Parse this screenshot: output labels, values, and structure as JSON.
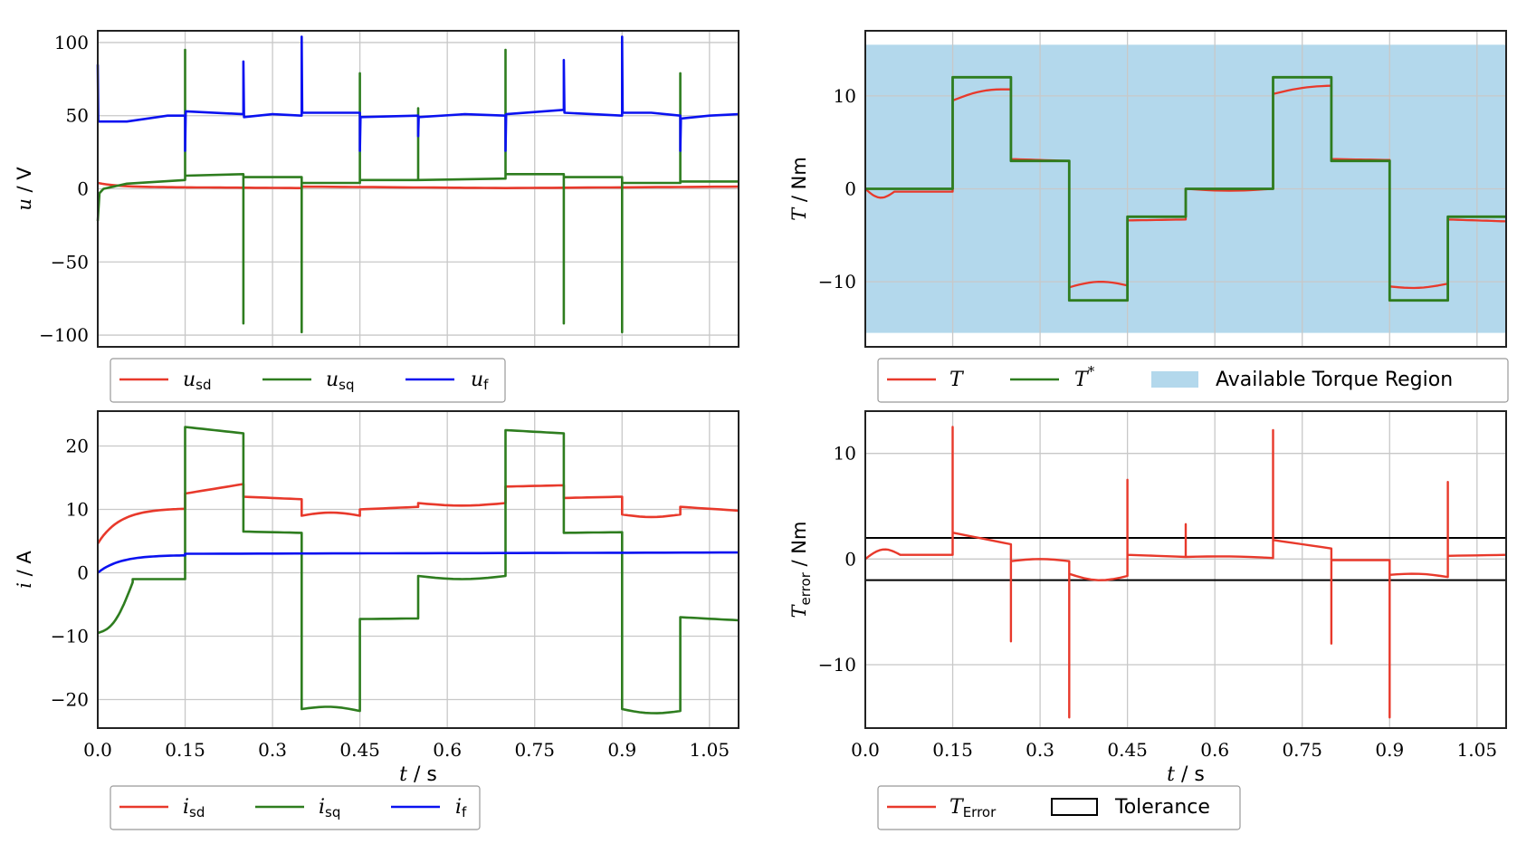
{
  "colors": {
    "red": "#e8392b",
    "green": "#2e7d1f",
    "blue": "#0a12f0",
    "region": "#b3d8ec",
    "tolerance": "#000000",
    "grid": "#c8c8c8"
  },
  "charts": {
    "voltage": {
      "type": "line",
      "ylabel_main": "u",
      "ylabel_unit": " / V",
      "xlim": [
        0,
        1.1
      ],
      "ylim": [
        -108,
        108
      ],
      "yticks": [
        {
          "v": 100,
          "label": "100"
        },
        {
          "v": 50,
          "label": "50"
        },
        {
          "v": 0,
          "label": "0"
        },
        {
          "v": -50,
          "label": "−50"
        },
        {
          "v": -100,
          "label": "−100"
        }
      ],
      "legend": [
        {
          "main": "u",
          "sub": "sd"
        },
        {
          "main": "u",
          "sub": "sq"
        },
        {
          "main": "u",
          "sub": "f"
        }
      ]
    },
    "current": {
      "type": "line",
      "ylabel_main": "i",
      "ylabel_unit": " / A",
      "xlim": [
        0,
        1.1
      ],
      "ylim": [
        -24.5,
        25.5
      ],
      "yticks": [
        {
          "v": 20,
          "label": "20"
        },
        {
          "v": 10,
          "label": "10"
        },
        {
          "v": 0,
          "label": "0"
        },
        {
          "v": -10,
          "label": "−10"
        },
        {
          "v": -20,
          "label": "−20"
        }
      ],
      "xlabel_main": "t",
      "xlabel_unit": " / s",
      "legend": [
        {
          "main": "i",
          "sub": "sd"
        },
        {
          "main": "i",
          "sub": "sq"
        },
        {
          "main": "i",
          "sub": "f"
        }
      ]
    },
    "torque": {
      "type": "line",
      "ylabel_main": "T",
      "ylabel_unit": " / Nm",
      "xlim": [
        0,
        1.1
      ],
      "ylim": [
        -17,
        17
      ],
      "yticks": [
        {
          "v": 10,
          "label": "10"
        },
        {
          "v": 0,
          "label": "0"
        },
        {
          "v": -10,
          "label": "−10"
        }
      ],
      "legend": [
        {
          "main": "T",
          "sup": ""
        },
        {
          "main": "T",
          "sup": "*"
        },
        {
          "text": "Available Torque Region"
        }
      ]
    },
    "error": {
      "type": "line",
      "ylabel_main": "T",
      "ylabel_sub": "error",
      "ylabel_unit": " / Nm",
      "xlim": [
        0,
        1.1
      ],
      "ylim": [
        -16,
        14
      ],
      "yticks": [
        {
          "v": 10,
          "label": "10"
        },
        {
          "v": 0,
          "label": "0"
        },
        {
          "v": -10,
          "label": "−10"
        }
      ],
      "xlabel_main": "t",
      "xlabel_unit": " / s",
      "legend": [
        {
          "main": "T",
          "sub": "Error"
        },
        {
          "text": "Tolerance"
        }
      ]
    }
  },
  "xticks": [
    {
      "v": 0,
      "label": "0.0"
    },
    {
      "v": 0.15,
      "label": "0.15"
    },
    {
      "v": 0.3,
      "label": "0.3"
    },
    {
      "v": 0.45,
      "label": "0.45"
    },
    {
      "v": 0.6,
      "label": "0.6"
    },
    {
      "v": 0.75,
      "label": "0.75"
    },
    {
      "v": 0.9,
      "label": "0.9"
    },
    {
      "v": 1.05,
      "label": "1.05"
    }
  ],
  "chart_data": [
    {
      "type": "line",
      "title": "",
      "ylabel": "u / V",
      "xlim": [
        0,
        1.1
      ],
      "ylim": [
        -108,
        108
      ],
      "series": [
        {
          "name": "u_sd",
          "x": [
            0,
            0.005,
            0.05,
            0.15,
            0.25,
            0.35,
            0.45,
            0.55,
            0.7,
            0.8,
            0.9,
            1.0,
            1.1
          ],
          "values": [
            4,
            3,
            2,
            1,
            0.5,
            1,
            1.5,
            1,
            0.5,
            0.5,
            1,
            1,
            1.5
          ]
        },
        {
          "name": "u_sq",
          "x": [
            0,
            0.002,
            0.01,
            0.05,
            0.15,
            0.25,
            0.35,
            0.45,
            0.55,
            0.7,
            0.8,
            0.9,
            1.0,
            1.1
          ],
          "values": [
            -22,
            -3,
            0,
            3,
            6,
            10,
            8,
            5,
            6,
            7,
            10,
            8,
            5,
            6
          ]
        },
        {
          "name": "u_f",
          "x": [
            0,
            0.05,
            0.15,
            0.25,
            0.35,
            0.45,
            0.55,
            0.7,
            0.8,
            0.9,
            1.0,
            1.1
          ],
          "values": [
            47,
            47,
            53,
            51,
            53,
            50,
            50,
            52,
            54,
            50,
            51,
            51
          ]
        }
      ]
    },
    {
      "type": "line",
      "title": "",
      "ylabel": "i / A",
      "xlabel": "t / s",
      "xlim": [
        0,
        1.1
      ],
      "ylim": [
        -24.5,
        25.5
      ],
      "series": [
        {
          "name": "i_sd",
          "x": [
            0,
            0.05,
            0.15,
            0.25,
            0.35,
            0.45,
            0.55,
            0.7,
            0.8,
            0.9,
            1.0,
            1.1
          ],
          "values": [
            4.6,
            9,
            10,
            14,
            11.6,
            9,
            11,
            11,
            13.8,
            12,
            10.4,
            9.8
          ]
        },
        {
          "name": "i_sq",
          "x": [
            0,
            0.05,
            0.15,
            0.25,
            0.35,
            0.45,
            0.55,
            0.7,
            0.8,
            0.9,
            1.0,
            1.1
          ],
          "values": [
            -9.5,
            -1.5,
            23,
            6.5,
            -21.5,
            -7.3,
            -0.5,
            22.5,
            6.3,
            -21.8,
            -7,
            -7.5
          ]
        },
        {
          "name": "i_f",
          "x": [
            0,
            0.05,
            0.15,
            0.25,
            0.35,
            0.55,
            0.7,
            0.8,
            1.0,
            1.1
          ],
          "values": [
            0,
            2,
            2.8,
            3.2,
            3.3,
            3.1,
            3.1,
            3.3,
            3.2,
            3.2
          ]
        }
      ]
    },
    {
      "type": "line",
      "title": "",
      "ylabel": "T / Nm",
      "xlim": [
        0,
        1.1
      ],
      "ylim": [
        -17,
        17
      ],
      "series": [
        {
          "name": "T",
          "x": [
            0,
            0.02,
            0.05,
            0.15,
            0.151,
            0.25,
            0.35,
            0.351,
            0.45,
            0.55,
            0.7,
            0.8,
            0.9,
            0.901,
            1.0,
            1.1
          ],
          "values": [
            0,
            -1,
            -0.3,
            -0.3,
            9.5,
            10.7,
            3,
            -10.6,
            -10.5,
            -3.3,
            0,
            11,
            3.1,
            -10.5,
            -10.2,
            -3.5
          ]
        },
        {
          "name": "T*",
          "x": [
            0,
            0.15,
            0.25,
            0.35,
            0.45,
            0.55,
            0.7,
            0.8,
            0.9,
            1.0,
            1.1
          ],
          "values": [
            0,
            12,
            3,
            -12,
            -3,
            0,
            12,
            3,
            -12,
            -3,
            -3
          ]
        },
        {
          "name": "Available Torque Region",
          "type": "area",
          "values": [
            -15.5,
            15.5
          ]
        }
      ]
    },
    {
      "type": "line",
      "title": "",
      "ylabel": "T_error / Nm",
      "xlabel": "t / s",
      "xlim": [
        0,
        1.1
      ],
      "ylim": [
        -16,
        14
      ],
      "series": [
        {
          "name": "T_Error",
          "x": [
            0,
            0.02,
            0.15,
            0.25,
            0.35,
            0.45,
            0.55,
            0.7,
            0.8,
            0.9,
            1.0,
            1.1
          ],
          "values": [
            0,
            0.8,
            12.5,
            -7.8,
            -15,
            7.5,
            3.3,
            12.2,
            -8,
            -15,
            7.3,
            0.4
          ]
        },
        {
          "name": "Tolerance",
          "x": [
            0,
            1.1
          ],
          "values": [
            2,
            2
          ],
          "lower": [
            -2,
            -2
          ]
        }
      ]
    }
  ]
}
